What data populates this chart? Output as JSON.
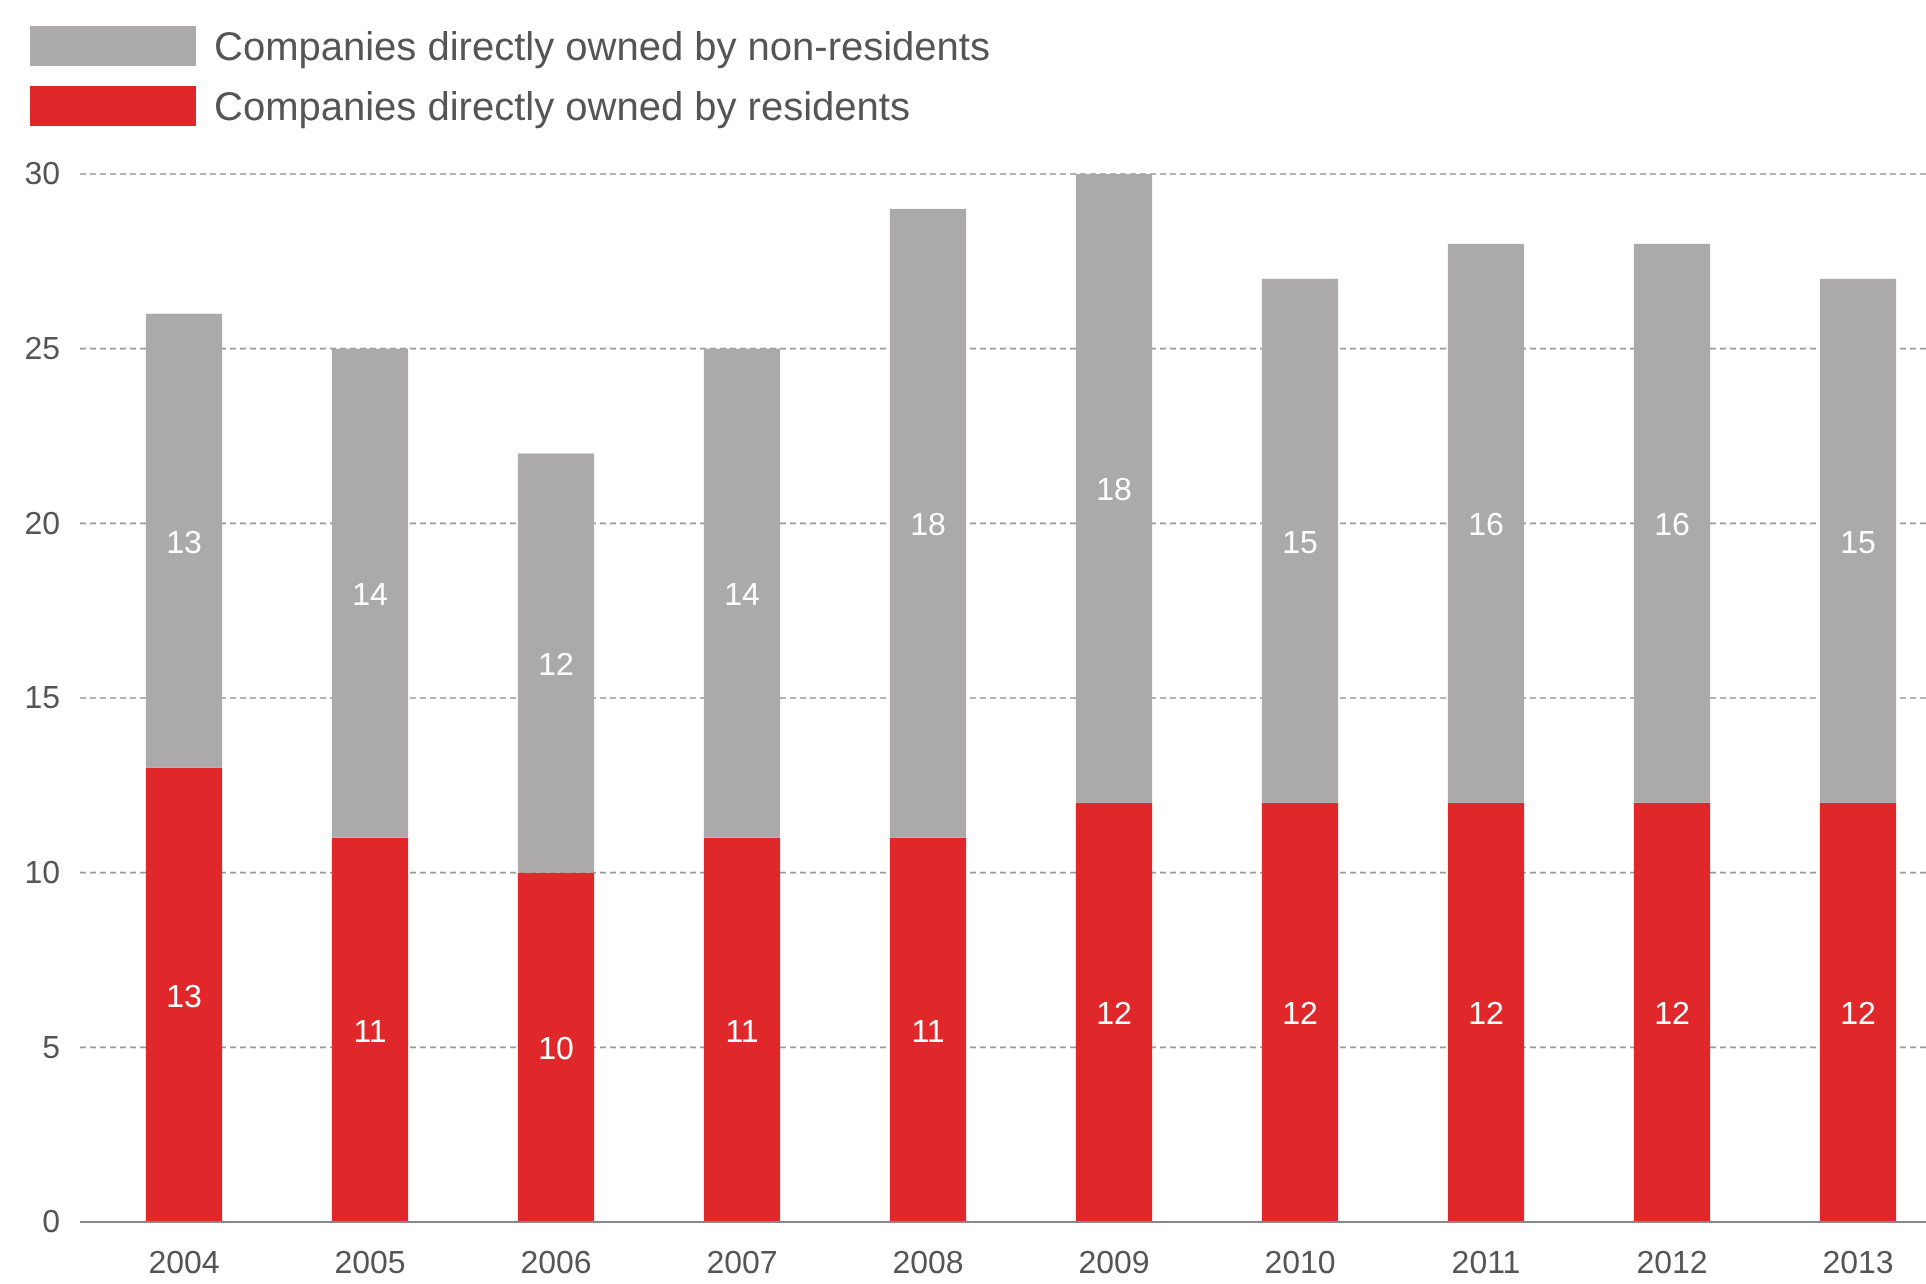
{
  "chart_data": {
    "type": "bar",
    "stacked": true,
    "categories": [
      "2004",
      "2005",
      "2006",
      "2007",
      "2008",
      "2009",
      "2010",
      "2011",
      "2012",
      "2013"
    ],
    "series": [
      {
        "name": "Companies directly owned by residents",
        "color": "#e0282a",
        "values": [
          13,
          11,
          10,
          11,
          11,
          12,
          12,
          12,
          12,
          12
        ]
      },
      {
        "name": "Companies directly owned by non-residents",
        "color": "#aba9aa",
        "values": [
          13,
          14,
          12,
          14,
          18,
          18,
          15,
          16,
          16,
          15
        ]
      }
    ],
    "ylim": [
      0,
      30
    ],
    "yticks": [
      0,
      5,
      10,
      15,
      20,
      25,
      30
    ],
    "grid": "y",
    "legend": "top left",
    "data_labels": true
  }
}
